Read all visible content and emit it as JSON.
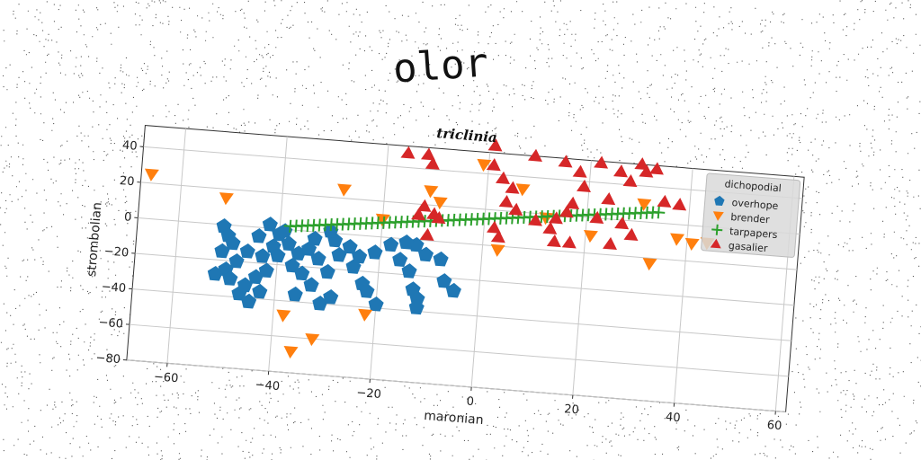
{
  "chart_data": {
    "type": "scatter",
    "suptitle": "olor",
    "title": "triclinia",
    "xlabel": "maronian",
    "ylabel": "strombolian",
    "xlim": [
      -68,
      62
    ],
    "ylim": [
      -80,
      52
    ],
    "xticks": [
      -60,
      -40,
      -20,
      0,
      20,
      40,
      60
    ],
    "yticks": [
      -80,
      -60,
      -40,
      -20,
      0,
      20,
      40
    ],
    "grid": true,
    "legend": {
      "title": "dichopodial",
      "placement": "top-right"
    },
    "series": [
      {
        "name": "overhope",
        "marker": "pentagon",
        "color": "#1f77b4",
        "points": [
          [
            -51,
            -1
          ],
          [
            -50,
            -6
          ],
          [
            -49,
            -10
          ],
          [
            -51,
            -15
          ],
          [
            -48,
            -20
          ],
          [
            -50,
            -25
          ],
          [
            -52,
            -28
          ],
          [
            -49,
            -30
          ],
          [
            -46,
            -33
          ],
          [
            -47,
            -38
          ],
          [
            -45,
            -42
          ],
          [
            -43,
            -36
          ],
          [
            -44,
            -28
          ],
          [
            -42,
            -24
          ],
          [
            -43,
            -16
          ],
          [
            -41,
            -10
          ],
          [
            -44,
            -5
          ],
          [
            -42,
            2
          ],
          [
            -40,
            -3
          ],
          [
            -38,
            -8
          ],
          [
            -40,
            -15
          ],
          [
            -37,
            -20
          ],
          [
            -36,
            -13
          ],
          [
            -34,
            -10
          ],
          [
            -35,
            -24
          ],
          [
            -33,
            -30
          ],
          [
            -36,
            -36
          ],
          [
            -31,
            -40
          ],
          [
            -30,
            -22
          ],
          [
            -32,
            -15
          ],
          [
            -28,
            -12
          ],
          [
            -29,
            -4
          ],
          [
            -30,
            1
          ],
          [
            -26,
            -7
          ],
          [
            -24,
            -12
          ],
          [
            -25,
            -18
          ],
          [
            -23,
            -27
          ],
          [
            -22,
            -31
          ],
          [
            -20,
            -38
          ],
          [
            -21,
            -9
          ],
          [
            -18,
            -4
          ],
          [
            -16,
            -12
          ],
          [
            -14,
            -18
          ],
          [
            -13,
            -28
          ],
          [
            -12,
            -33
          ],
          [
            -12,
            -38
          ],
          [
            -11,
            -8
          ],
          [
            -8,
            -10
          ],
          [
            -7,
            -22
          ],
          [
            -5,
            -27
          ],
          [
            -13,
            -3
          ],
          [
            -15,
            -2
          ],
          [
            -29,
            -36
          ],
          [
            -46,
            -14
          ],
          [
            -39,
            -1
          ],
          [
            -33,
            -4
          ]
        ]
      },
      {
        "name": "brender",
        "marker": "triangle-down",
        "color": "#ff7f0e",
        "points": [
          [
            -66,
            25
          ],
          [
            -51,
            15
          ],
          [
            -38,
            -48
          ],
          [
            -36,
            -68
          ],
          [
            -32,
            -60
          ],
          [
            -28,
            25
          ],
          [
            -22,
            -44
          ],
          [
            -20,
            10
          ],
          [
            -11,
            28
          ],
          [
            -9,
            22
          ],
          [
            -1,
            45
          ],
          [
            3,
            -2
          ],
          [
            21,
            10
          ],
          [
            31,
            30
          ],
          [
            33,
            -3
          ],
          [
            38,
            12
          ],
          [
            41,
            10
          ],
          [
            44,
            11
          ],
          [
            7,
            33
          ],
          [
            12,
            18
          ]
        ]
      },
      {
        "name": "tarpapers",
        "marker": "plus",
        "color": "#2ca02c",
        "start": [
          -38,
          2
        ],
        "end": [
          34,
          26
        ],
        "count": 64
      },
      {
        "name": "gasalier",
        "marker": "triangle-up",
        "color": "#d62728",
        "points": [
          [
            -16,
            48
          ],
          [
            -12,
            48
          ],
          [
            -11,
            43
          ],
          [
            -12,
            19
          ],
          [
            -13,
            14
          ],
          [
            -10,
            15
          ],
          [
            -9,
            13
          ],
          [
            -11,
            3
          ],
          [
            1,
            56
          ],
          [
            1,
            45
          ],
          [
            3,
            38
          ],
          [
            5,
            33
          ],
          [
            4,
            25
          ],
          [
            6,
            21
          ],
          [
            2,
            10
          ],
          [
            3,
            5
          ],
          [
            9,
            52
          ],
          [
            15,
            50
          ],
          [
            18,
            45
          ],
          [
            19,
            37
          ],
          [
            17,
            27
          ],
          [
            16,
            22
          ],
          [
            14,
            18
          ],
          [
            13,
            12
          ],
          [
            14,
            5
          ],
          [
            17,
            5
          ],
          [
            22,
            51
          ],
          [
            26,
            47
          ],
          [
            28,
            42
          ],
          [
            30,
            52
          ],
          [
            31,
            48
          ],
          [
            33,
            50
          ],
          [
            24,
            31
          ],
          [
            29,
            12
          ],
          [
            25,
            6
          ],
          [
            35,
            32
          ],
          [
            38,
            31
          ],
          [
            10,
            16
          ],
          [
            22,
            20
          ],
          [
            27,
            18
          ]
        ]
      }
    ]
  }
}
